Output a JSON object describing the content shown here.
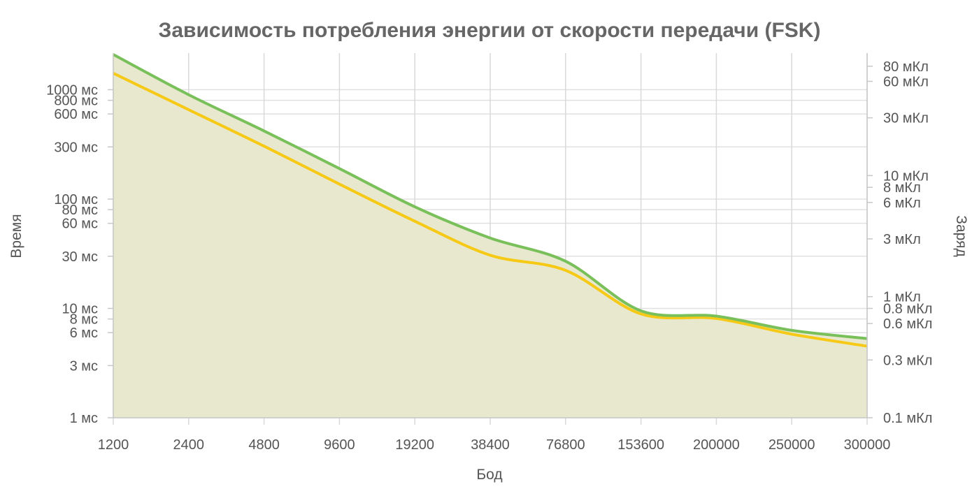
{
  "chart_data": {
    "type": "area",
    "title": "Зависимость потребления энергии от скорости передачи (FSK)",
    "xlabel": "Бод",
    "ylabel_left": "Время",
    "ylabel_right": "Заряд",
    "x_scale": "categorical",
    "categories": [
      "1200",
      "2400",
      "4800",
      "9600",
      "19200",
      "38400",
      "76800",
      "153600",
      "200000",
      "250000",
      "300000"
    ],
    "y_left": {
      "scale": "log",
      "range": [
        1,
        2100
      ],
      "ticks": [
        {
          "value": 1,
          "label": "1 мс"
        },
        {
          "value": 3,
          "label": "3 мс"
        },
        {
          "value": 6,
          "label": "6 мс"
        },
        {
          "value": 8,
          "label": "8 мс"
        },
        {
          "value": 10,
          "label": "10 мс"
        },
        {
          "value": 30,
          "label": "30 мс"
        },
        {
          "value": 60,
          "label": "60 мс"
        },
        {
          "value": 80,
          "label": "80 мс"
        },
        {
          "value": 100,
          "label": "100 мс"
        },
        {
          "value": 300,
          "label": "300 мс"
        },
        {
          "value": 600,
          "label": "600 мс"
        },
        {
          "value": 800,
          "label": "800 мс"
        },
        {
          "value": 1000,
          "label": "1000 мс"
        }
      ]
    },
    "y_right": {
      "scale": "log",
      "range": [
        0.1,
        100
      ],
      "ticks": [
        {
          "value": 0.1,
          "label": "0.1 мКл"
        },
        {
          "value": 0.3,
          "label": "0.3 мКл"
        },
        {
          "value": 0.6,
          "label": "0.6 мКл"
        },
        {
          "value": 0.8,
          "label": "0.8 мКл"
        },
        {
          "value": 1,
          "label": "1 мКл"
        },
        {
          "value": 3,
          "label": "3 мКл"
        },
        {
          "value": 6,
          "label": "6 мКл"
        },
        {
          "value": 8,
          "label": "8 мКл"
        },
        {
          "value": 10,
          "label": "10 мКл"
        },
        {
          "value": 30,
          "label": "30 мКл"
        },
        {
          "value": 60,
          "label": "60 мКл"
        },
        {
          "value": 80,
          "label": "80 мКл"
        }
      ]
    },
    "series": [
      {
        "axis": "right",
        "color": "#f6c916",
        "fill": "#fdf8dc",
        "values": [
          70,
          35,
          17.5,
          8.5,
          4.2,
          2.2,
          1.65,
          0.72,
          0.66,
          0.49,
          0.39
        ]
      },
      {
        "axis": "left",
        "color": "#79c05a",
        "fill": "#e8e8cf",
        "values": [
          2100,
          900,
          420,
          190,
          85,
          44,
          27,
          9.5,
          8.5,
          6.3,
          5.3
        ]
      }
    ],
    "grid": true,
    "legend": "none"
  }
}
